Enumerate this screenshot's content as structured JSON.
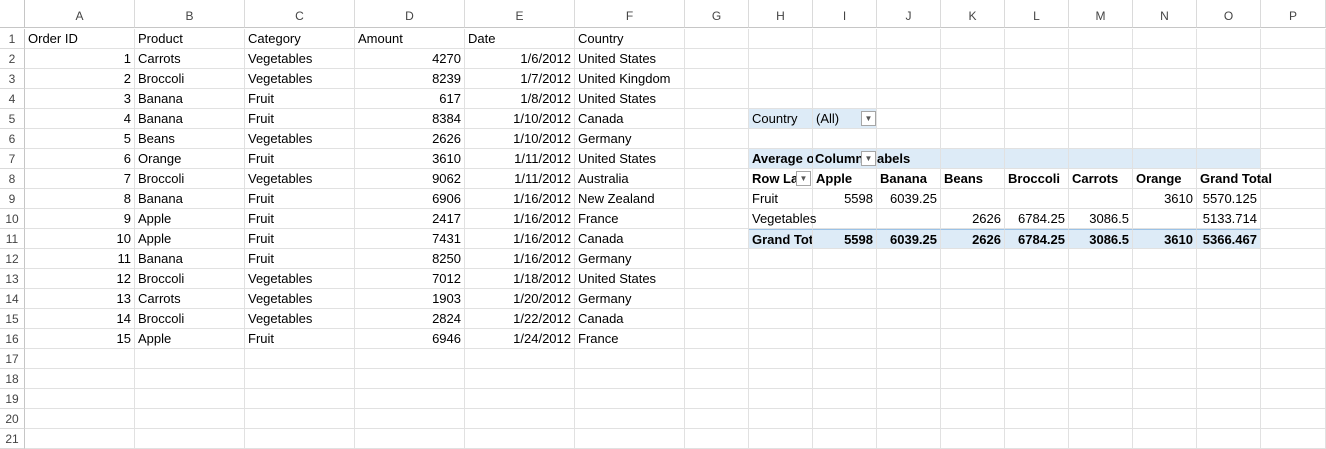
{
  "columns": [
    "A",
    "B",
    "C",
    "D",
    "E",
    "F",
    "G",
    "H",
    "I",
    "J",
    "K",
    "L",
    "M",
    "N",
    "O",
    "P"
  ],
  "rows": [
    "1",
    "2",
    "3",
    "4",
    "5",
    "6",
    "7",
    "8",
    "9",
    "10",
    "11",
    "12",
    "13",
    "14",
    "15",
    "16",
    "17",
    "18",
    "19",
    "20",
    "21"
  ],
  "table": {
    "headers": [
      "Order ID",
      "Product",
      "Category",
      "Amount",
      "Date",
      "Country"
    ],
    "records": [
      [
        "1",
        "Carrots",
        "Vegetables",
        "4270",
        "1/6/2012",
        "United States"
      ],
      [
        "2",
        "Broccoli",
        "Vegetables",
        "8239",
        "1/7/2012",
        "United Kingdom"
      ],
      [
        "3",
        "Banana",
        "Fruit",
        "617",
        "1/8/2012",
        "United States"
      ],
      [
        "4",
        "Banana",
        "Fruit",
        "8384",
        "1/10/2012",
        "Canada"
      ],
      [
        "5",
        "Beans",
        "Vegetables",
        "2626",
        "1/10/2012",
        "Germany"
      ],
      [
        "6",
        "Orange",
        "Fruit",
        "3610",
        "1/11/2012",
        "United States"
      ],
      [
        "7",
        "Broccoli",
        "Vegetables",
        "9062",
        "1/11/2012",
        "Australia"
      ],
      [
        "8",
        "Banana",
        "Fruit",
        "6906",
        "1/16/2012",
        "New Zealand"
      ],
      [
        "9",
        "Apple",
        "Fruit",
        "2417",
        "1/16/2012",
        "France"
      ],
      [
        "10",
        "Apple",
        "Fruit",
        "7431",
        "1/16/2012",
        "Canada"
      ],
      [
        "11",
        "Banana",
        "Fruit",
        "8250",
        "1/16/2012",
        "Germany"
      ],
      [
        "12",
        "Broccoli",
        "Vegetables",
        "7012",
        "1/18/2012",
        "United States"
      ],
      [
        "13",
        "Carrots",
        "Vegetables",
        "1903",
        "1/20/2012",
        "Germany"
      ],
      [
        "14",
        "Broccoli",
        "Vegetables",
        "2824",
        "1/22/2012",
        "Canada"
      ],
      [
        "15",
        "Apple",
        "Fruit",
        "6946",
        "1/24/2012",
        "France"
      ]
    ]
  },
  "pivot": {
    "filter_label": "Country",
    "filter_value": "(All)",
    "values_label": "Average o",
    "col_labels_label": "Column",
    "col_labels_tail": "abels",
    "row_labels_label": "Row La",
    "columns": [
      "Apple",
      "Banana",
      "Beans",
      "Broccoli",
      "Carrots",
      "Orange",
      "Grand Total"
    ],
    "rows": [
      {
        "label": "Fruit",
        "values": [
          "5598",
          "6039.25",
          "",
          "",
          "",
          "3610",
          "5570.125"
        ]
      },
      {
        "label": "Vegetables",
        "values": [
          "",
          "",
          "2626",
          "6784.25",
          "3086.5",
          "",
          "5133.714"
        ]
      }
    ],
    "total": {
      "label": "Grand Tot",
      "values": [
        "5598",
        "6039.25",
        "2626",
        "6784.25",
        "3086.5",
        "3610",
        "5366.467"
      ]
    }
  }
}
